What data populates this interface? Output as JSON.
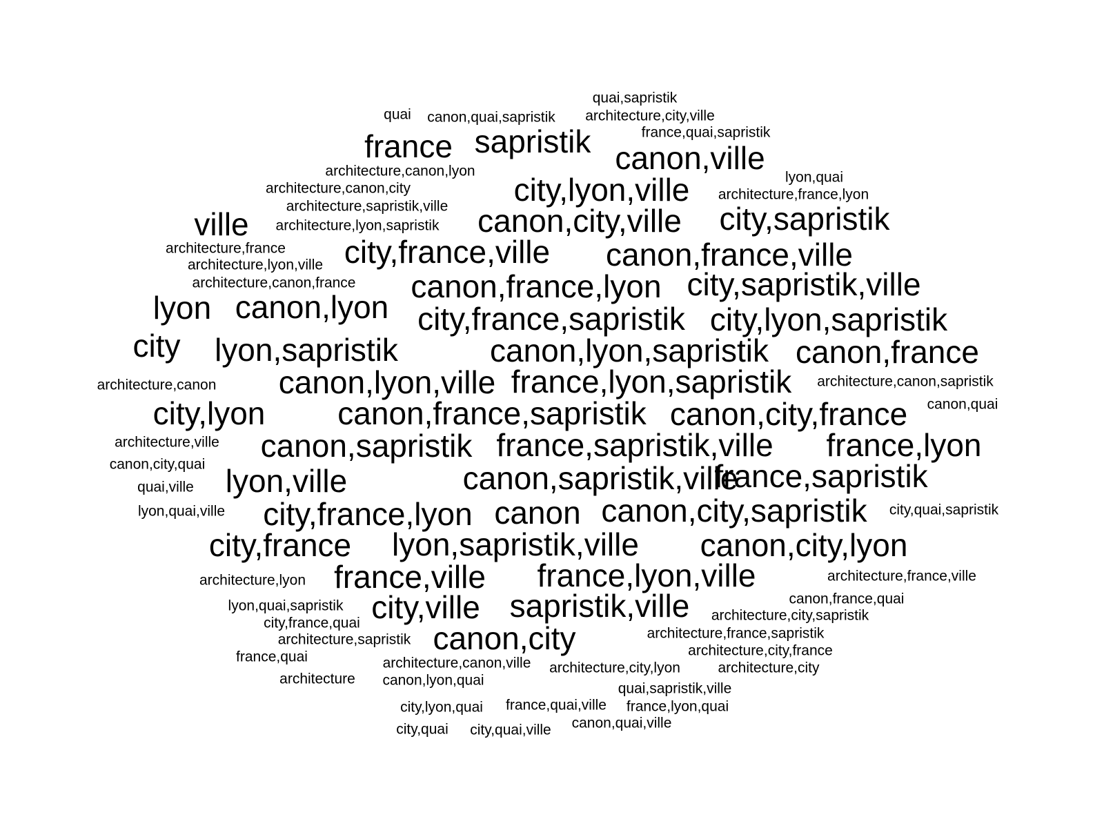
{
  "words": [
    {
      "text": "quai,sapristik",
      "weight": 1
    },
    {
      "text": "quai",
      "weight": 1
    },
    {
      "text": "canon,quai,sapristik",
      "weight": 1
    },
    {
      "text": "architecture,city,ville",
      "weight": 1
    },
    {
      "text": "france,quai,sapristik",
      "weight": 1
    },
    {
      "text": "france",
      "weight": 2
    },
    {
      "text": "sapristik",
      "weight": 2
    },
    {
      "text": "canon,ville",
      "weight": 2
    },
    {
      "text": "architecture,canon,lyon",
      "weight": 1
    },
    {
      "text": "lyon,quai",
      "weight": 1
    },
    {
      "text": "architecture,canon,city",
      "weight": 1
    },
    {
      "text": "city,lyon,ville",
      "weight": 2
    },
    {
      "text": "architecture,france,lyon",
      "weight": 1
    },
    {
      "text": "architecture,sapristik,ville",
      "weight": 1
    },
    {
      "text": "ville",
      "weight": 2
    },
    {
      "text": "architecture,lyon,sapristik",
      "weight": 1
    },
    {
      "text": "canon,city,ville",
      "weight": 2
    },
    {
      "text": "city,sapristik",
      "weight": 2
    },
    {
      "text": "architecture,france",
      "weight": 1
    },
    {
      "text": "city,france,ville",
      "weight": 2
    },
    {
      "text": "canon,france,ville",
      "weight": 2
    },
    {
      "text": "architecture,lyon,ville",
      "weight": 1
    },
    {
      "text": "architecture,canon,france",
      "weight": 1
    },
    {
      "text": "canon,france,lyon",
      "weight": 2
    },
    {
      "text": "city,sapristik,ville",
      "weight": 2
    },
    {
      "text": "lyon",
      "weight": 2
    },
    {
      "text": "canon,lyon",
      "weight": 2
    },
    {
      "text": "city,france,sapristik",
      "weight": 2
    },
    {
      "text": "city,lyon,sapristik",
      "weight": 2
    },
    {
      "text": "city",
      "weight": 2
    },
    {
      "text": "lyon,sapristik",
      "weight": 2
    },
    {
      "text": "canon,lyon,sapristik",
      "weight": 2
    },
    {
      "text": "canon,france",
      "weight": 2
    },
    {
      "text": "architecture,canon",
      "weight": 1
    },
    {
      "text": "canon,lyon,ville",
      "weight": 2
    },
    {
      "text": "france,lyon,sapristik",
      "weight": 2
    },
    {
      "text": "architecture,canon,sapristik",
      "weight": 1
    },
    {
      "text": "city,lyon",
      "weight": 2
    },
    {
      "text": "canon,france,sapristik",
      "weight": 2
    },
    {
      "text": "canon,city,france",
      "weight": 2
    },
    {
      "text": "canon,quai",
      "weight": 1
    },
    {
      "text": "architecture,ville",
      "weight": 1
    },
    {
      "text": "canon,sapristik",
      "weight": 2
    },
    {
      "text": "france,sapristik,ville",
      "weight": 2
    },
    {
      "text": "france,lyon",
      "weight": 2
    },
    {
      "text": "canon,city,quai",
      "weight": 1
    },
    {
      "text": "quai,ville",
      "weight": 1
    },
    {
      "text": "lyon,ville",
      "weight": 2
    },
    {
      "text": "canon,sapristik,ville",
      "weight": 2
    },
    {
      "text": "france,sapristik",
      "weight": 2
    },
    {
      "text": "lyon,quai,ville",
      "weight": 1
    },
    {
      "text": "city,france,lyon",
      "weight": 2
    },
    {
      "text": "canon",
      "weight": 2
    },
    {
      "text": "canon,city,sapristik",
      "weight": 2
    },
    {
      "text": "city,quai,sapristik",
      "weight": 1
    },
    {
      "text": "city,france",
      "weight": 2
    },
    {
      "text": "lyon,sapristik,ville",
      "weight": 2
    },
    {
      "text": "canon,city,lyon",
      "weight": 2
    },
    {
      "text": "architecture,lyon",
      "weight": 1
    },
    {
      "text": "france,ville",
      "weight": 2
    },
    {
      "text": "france,lyon,ville",
      "weight": 2
    },
    {
      "text": "architecture,france,ville",
      "weight": 1
    },
    {
      "text": "lyon,quai,sapristik",
      "weight": 1
    },
    {
      "text": "city,ville",
      "weight": 2
    },
    {
      "text": "sapristik,ville",
      "weight": 2
    },
    {
      "text": "canon,france,quai",
      "weight": 1
    },
    {
      "text": "city,france,quai",
      "weight": 1
    },
    {
      "text": "architecture,city,sapristik",
      "weight": 1
    },
    {
      "text": "architecture,sapristik",
      "weight": 1
    },
    {
      "text": "canon,city",
      "weight": 2
    },
    {
      "text": "architecture,france,sapristik",
      "weight": 1
    },
    {
      "text": "france,quai",
      "weight": 1
    },
    {
      "text": "architecture,city,france",
      "weight": 1
    },
    {
      "text": "architecture,canon,ville",
      "weight": 1
    },
    {
      "text": "architecture,city,lyon",
      "weight": 1
    },
    {
      "text": "architecture,city",
      "weight": 1
    },
    {
      "text": "architecture",
      "weight": 1
    },
    {
      "text": "canon,lyon,quai",
      "weight": 1
    },
    {
      "text": "quai,sapristik,ville",
      "weight": 1
    },
    {
      "text": "city,lyon,quai",
      "weight": 1
    },
    {
      "text": "france,quai,ville",
      "weight": 1
    },
    {
      "text": "france,lyon,quai",
      "weight": 1
    },
    {
      "text": "canon,quai,ville",
      "weight": 1
    },
    {
      "text": "city,quai",
      "weight": 1
    },
    {
      "text": "city,quai,ville",
      "weight": 1
    }
  ]
}
